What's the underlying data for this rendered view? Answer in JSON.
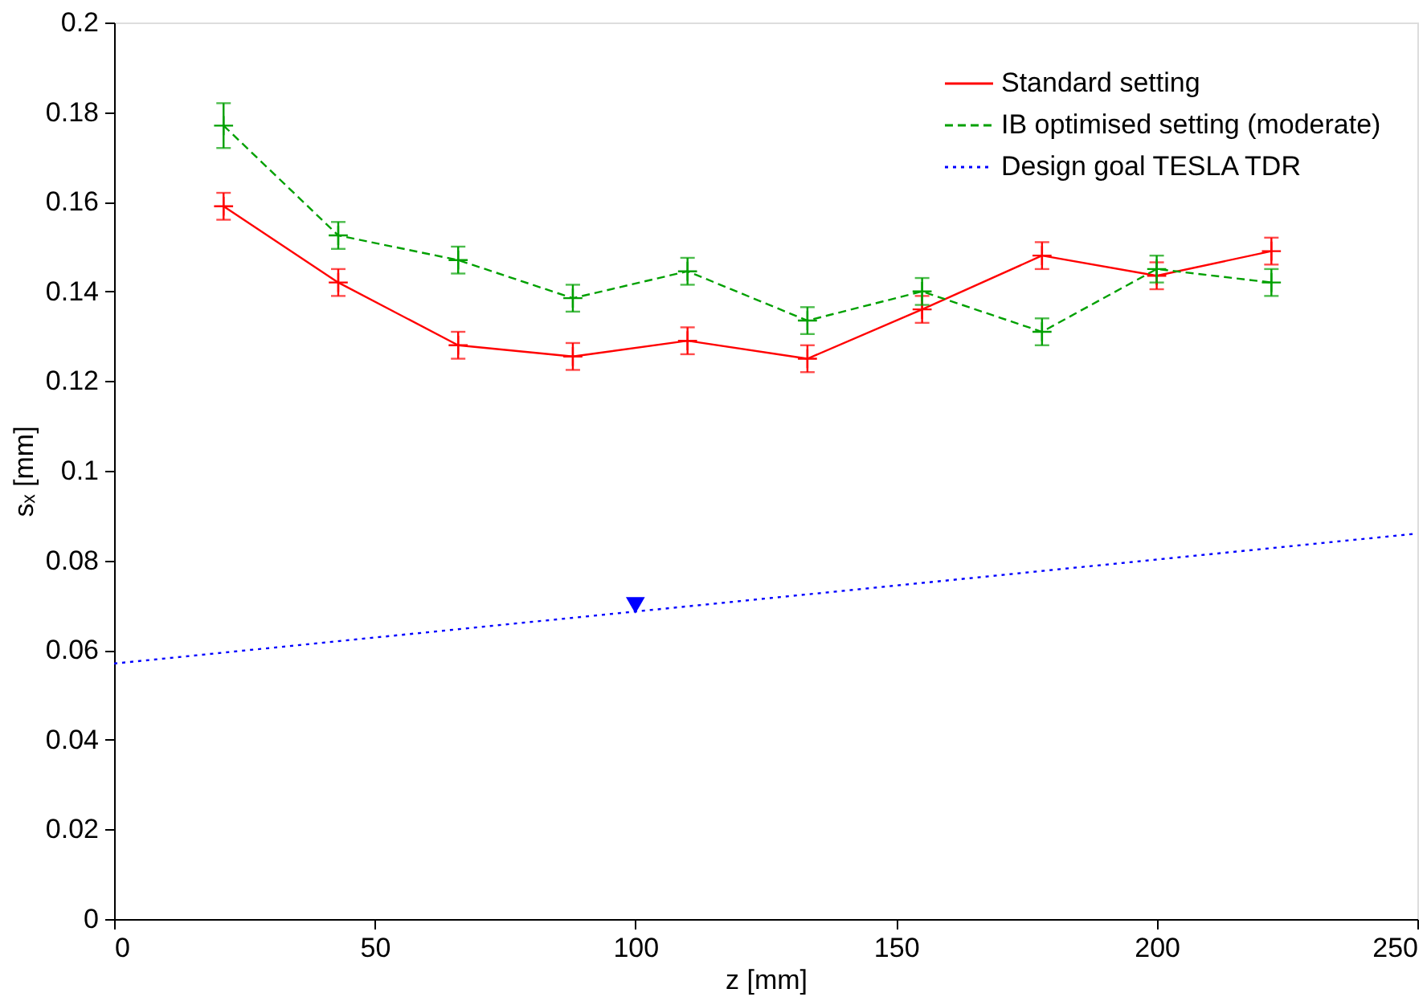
{
  "chart_data": {
    "type": "line",
    "xlabel": "z [mm]",
    "ylabel": "sₓ [mm]",
    "xlim": [
      0,
      250
    ],
    "xticks": [
      0,
      50,
      100,
      150,
      200,
      250
    ],
    "ylim": [
      0,
      0.2
    ],
    "yticks": [
      0,
      0.02,
      0.04,
      0.06,
      0.08,
      0.1,
      0.12,
      0.14,
      0.16,
      0.18,
      0.2
    ],
    "grid": false,
    "legend": "top right",
    "series": [
      {
        "name": "Standard setting",
        "color": "#ff0000",
        "marker": "cross",
        "line_style": "solid",
        "x": [
          21,
          43,
          66,
          88,
          110,
          133,
          155,
          178,
          200,
          222
        ],
        "values": [
          0.159,
          0.142,
          0.128,
          0.1255,
          0.129,
          0.125,
          0.136,
          0.148,
          0.1435,
          0.149
        ],
        "errors": [
          0.003,
          0.003,
          0.003,
          0.003,
          0.003,
          0.003,
          0.003,
          0.003,
          0.003,
          0.003
        ]
      },
      {
        "name": "IB optimised setting (moderate)",
        "color": "#00a000",
        "marker": "cross",
        "line_style": "dashed",
        "x": [
          21,
          43,
          66,
          88,
          110,
          133,
          155,
          178,
          200,
          222
        ],
        "values": [
          0.177,
          0.1525,
          0.147,
          0.1385,
          0.1445,
          0.1335,
          0.14,
          0.131,
          0.145,
          0.142
        ],
        "errors": [
          0.005,
          0.003,
          0.003,
          0.003,
          0.003,
          0.003,
          0.003,
          0.003,
          0.003,
          0.003
        ]
      },
      {
        "name": "Design goal TESLA TDR",
        "color": "#0000ff",
        "marker": "none",
        "line_style": "dotted",
        "x": [
          0,
          250
        ],
        "values": [
          0.057,
          0.086
        ]
      },
      {
        "color": "#0000ff",
        "type": "scatter",
        "marker": "triangle",
        "x": [
          100
        ],
        "values": [
          0.07
        ]
      }
    ]
  }
}
